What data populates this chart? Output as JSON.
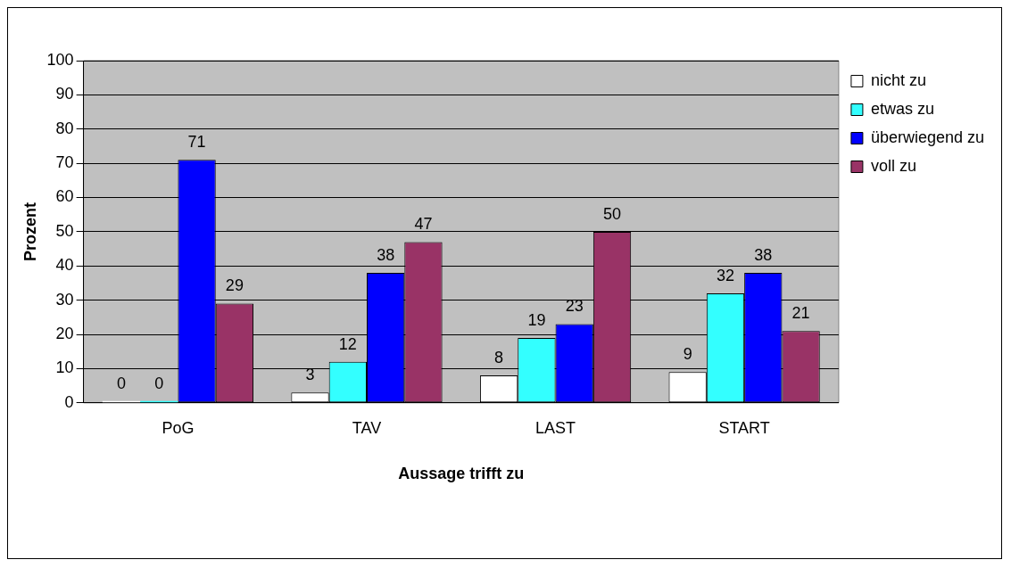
{
  "chart_data": {
    "type": "bar",
    "xlabel": "Aussage trifft zu",
    "ylabel": "Prozent",
    "categories": [
      "PoG",
      "TAV",
      "LAST",
      "START"
    ],
    "series": [
      {
        "name": "nicht zu",
        "color": "#ffffff",
        "values": [
          0,
          3,
          8,
          9
        ]
      },
      {
        "name": "etwas zu",
        "color": "#33ffff",
        "values": [
          0,
          12,
          19,
          32
        ]
      },
      {
        "name": "überwiegend zu",
        "color": "#0000ff",
        "values": [
          71,
          38,
          23,
          38
        ]
      },
      {
        "name": "voll zu",
        "color": "#993366",
        "values": [
          29,
          47,
          50,
          21
        ]
      }
    ],
    "ylim": [
      0,
      100
    ],
    "yticks": [
      0,
      10,
      20,
      30,
      40,
      50,
      60,
      70,
      80,
      90,
      100
    ],
    "grid": "y",
    "legend": "top right",
    "data_labels": true
  }
}
